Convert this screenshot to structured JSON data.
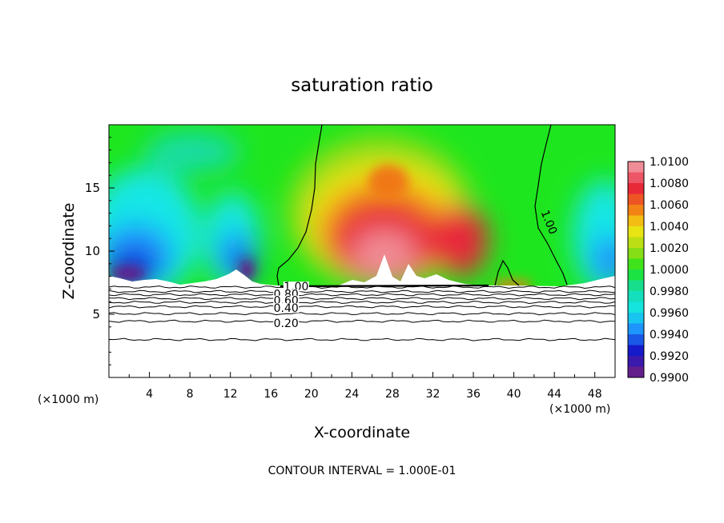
{
  "chart_data": {
    "type": "heatmap",
    "title": "saturation ratio",
    "xlabel": "X-coordinate",
    "ylabel": "Z-coordinate",
    "x_unit_left": "(×1000 m)",
    "x_unit_right": "(×1000 m)",
    "xlim": [
      0,
      50
    ],
    "ylim": [
      0,
      20
    ],
    "x_ticks": [
      "4",
      "8",
      "12",
      "16",
      "20",
      "24",
      "28",
      "32",
      "36",
      "40",
      "44",
      "48"
    ],
    "y_ticks": [
      "5",
      "10",
      "15"
    ],
    "footer": "CONTOUR INTERVAL = 1.000E-01",
    "colorbar": {
      "labels": [
        "1.0100",
        "1.0080",
        "1.0060",
        "1.0040",
        "1.0020",
        "1.0000",
        "0.9980",
        "0.9960",
        "0.9940",
        "0.9920",
        "0.9900"
      ],
      "colors": [
        "#f08c96",
        "#e8253a",
        "#f07814",
        "#f5e614",
        "#a0dc14",
        "#1ee61e",
        "#14dcaa",
        "#14e6e6",
        "#1e8cff",
        "#1414c8",
        "#641e8c"
      ]
    },
    "contour_labels": [
      {
        "text": "1.00",
        "x": 18.5,
        "z": 7.2
      },
      {
        "text": "1.00",
        "x": 43.5,
        "z": 12.3
      },
      {
        "text": "0.80",
        "x": 17.5,
        "z": 6.6
      },
      {
        "text": "0.60",
        "x": 17.5,
        "z": 6.1
      },
      {
        "text": "0.40",
        "x": 17.5,
        "z": 5.5
      },
      {
        "text": "0.20",
        "x": 17.5,
        "z": 4.3
      }
    ],
    "contour_levels_z": [
      7.15,
      6.8,
      6.55,
      6.25,
      5.95,
      5.6,
      5.05,
      4.45,
      3.0
    ],
    "features": [
      {
        "kind": "moist-max",
        "x": 28,
        "z": 11,
        "value": 1.008
      },
      {
        "kind": "dry-min",
        "x": 6,
        "z": 9,
        "value": 0.992
      },
      {
        "kind": "dry-min",
        "x": 48,
        "z": 9,
        "value": 0.995
      }
    ]
  }
}
